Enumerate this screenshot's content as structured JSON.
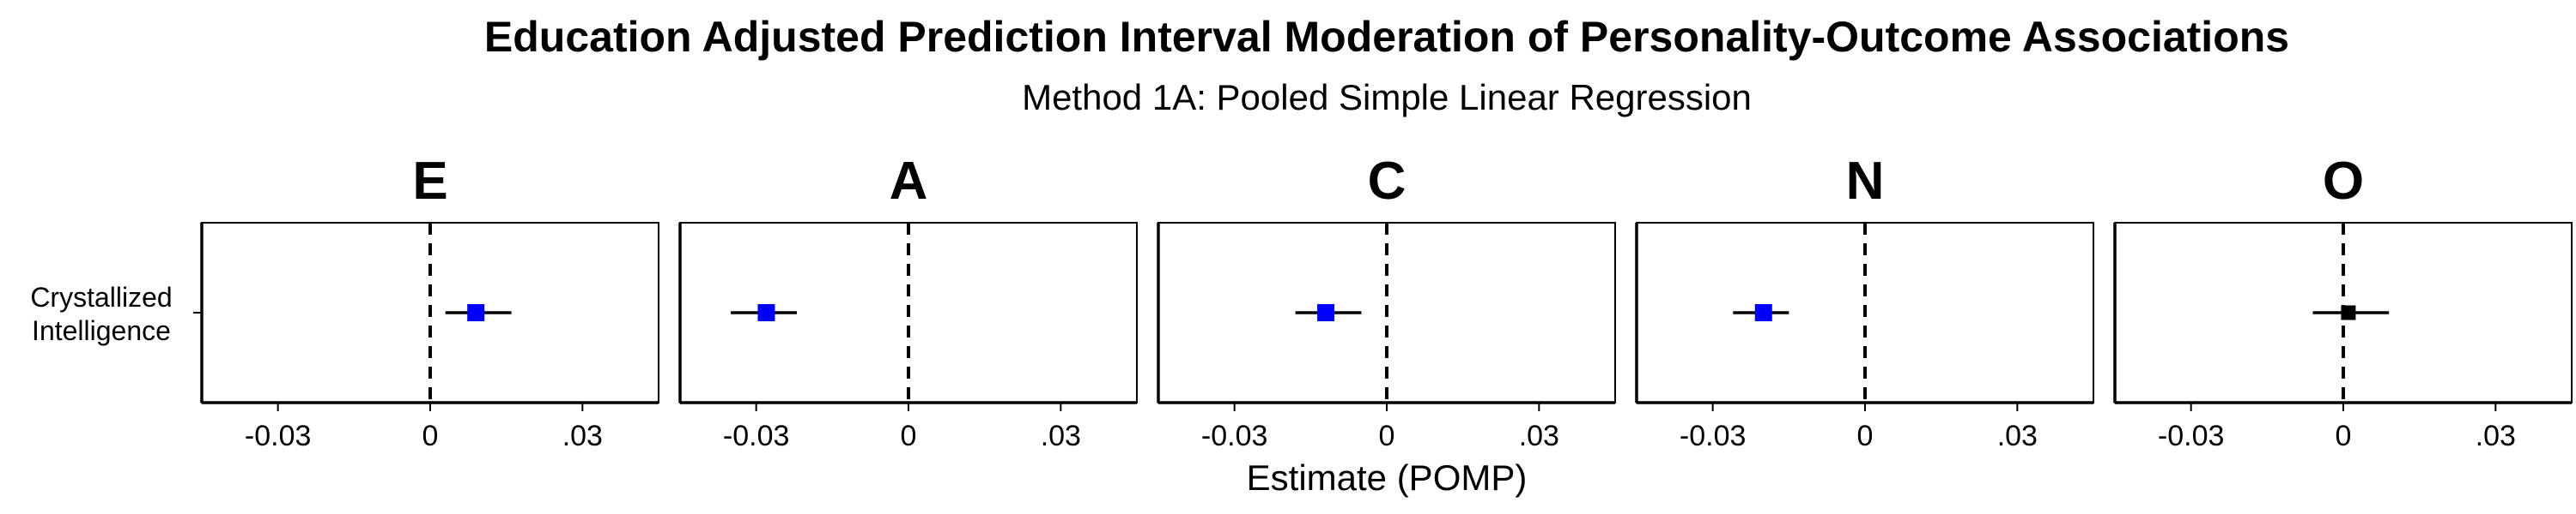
{
  "chart_data": {
    "type": "forest",
    "title": "Education Adjusted Prediction Interval Moderation of Personality-Outcome Associations",
    "subtitle": "Method 1A: Pooled Simple Linear Regression",
    "xlabel": "Estimate (POMP)",
    "ylabel": "",
    "xlim": [
      -0.045,
      0.045
    ],
    "x_ticks": [
      {
        "value": -0.03,
        "label": "-0.03"
      },
      {
        "value": 0,
        "label": "0"
      },
      {
        "value": 0.03,
        "label": ".03"
      }
    ],
    "reference_line": 0,
    "y_categories": [
      "Crystallized Intelligence"
    ],
    "grid": false,
    "colors": {
      "significant": "#0000ff",
      "nonsignificant": "#000000"
    },
    "facets": [
      {
        "label": "E",
        "estimate": 0.009,
        "ci_low": 0.003,
        "ci_high": 0.016,
        "significant": true
      },
      {
        "label": "A",
        "estimate": -0.028,
        "ci_low": -0.035,
        "ci_high": -0.022,
        "significant": true
      },
      {
        "label": "C",
        "estimate": -0.012,
        "ci_low": -0.018,
        "ci_high": -0.005,
        "significant": true
      },
      {
        "label": "N",
        "estimate": -0.02,
        "ci_low": -0.026,
        "ci_high": -0.015,
        "significant": true
      },
      {
        "label": "O",
        "estimate": 0.001,
        "ci_low": -0.006,
        "ci_high": 0.009,
        "significant": false
      }
    ]
  }
}
